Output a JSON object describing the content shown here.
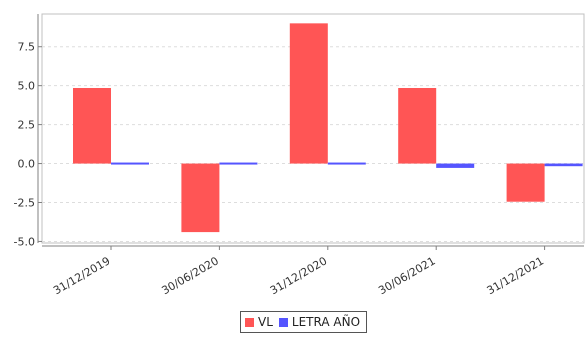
{
  "chart_data": {
    "type": "bar",
    "categories": [
      "31/12/2019",
      "30/06/2020",
      "31/12/2020",
      "30/06/2021",
      "31/12/2021"
    ],
    "series": [
      {
        "name": "VL",
        "values": [
          4.85,
          -4.4,
          9.0,
          4.85,
          -2.45
        ],
        "color": "#ff5555"
      },
      {
        "name": "LETRA AÑO",
        "values": [
          -0.05,
          0.07,
          -0.03,
          -0.28,
          -0.17
        ],
        "color": "#5555ff"
      }
    ],
    "y_ticks": [
      -5.0,
      -2.5,
      0.0,
      2.5,
      5.0,
      7.5
    ],
    "y_tick_labels": [
      "-5.0",
      "-2.5",
      "0.0",
      "2.5",
      "5.0",
      "7.5"
    ],
    "ylim": [
      -5.1,
      9.6
    ],
    "grid": true,
    "legend_position": "bottom-center",
    "title": "",
    "xlabel": "",
    "ylabel": ""
  }
}
